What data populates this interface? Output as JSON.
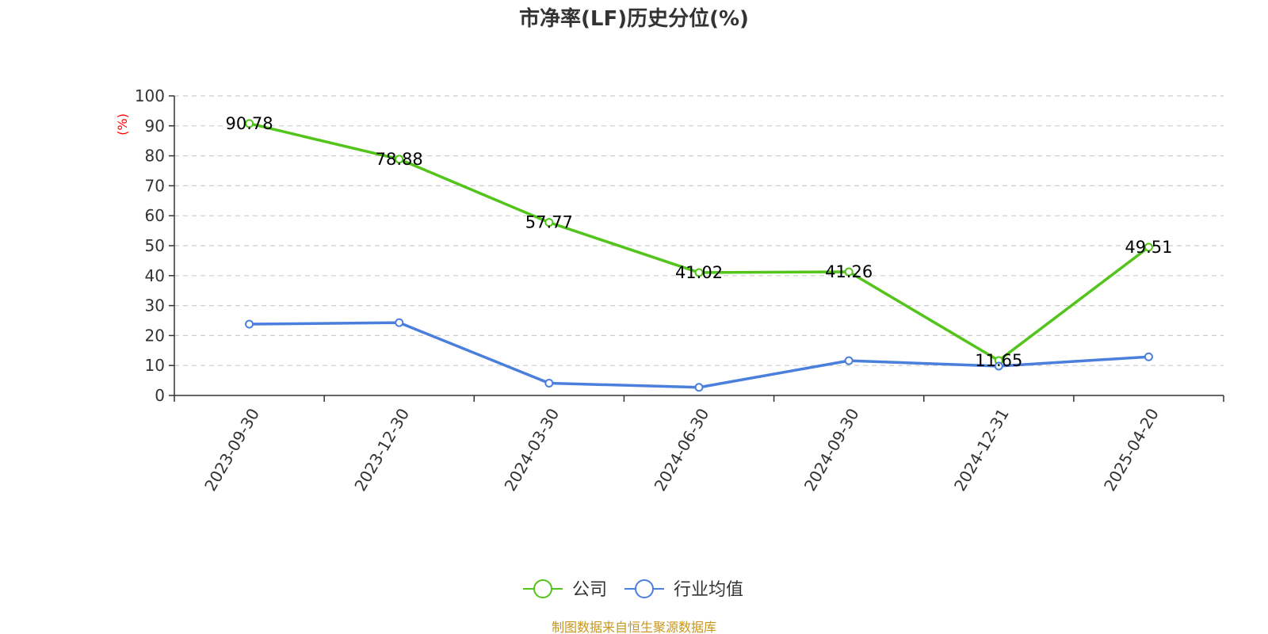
{
  "chart_data": {
    "type": "line",
    "title": "市净率(LF)历史分位(%)",
    "unit_label": "(%)",
    "categories": [
      "2023-09-30",
      "2023-12-30",
      "2024-03-30",
      "2024-06-30",
      "2024-09-30",
      "2024-12-31",
      "2025-04-20"
    ],
    "ylim": [
      0,
      100
    ],
    "yticks": [
      0,
      10,
      20,
      30,
      40,
      50,
      60,
      70,
      80,
      90,
      100
    ],
    "grid": true,
    "legend_position": "bottom-center",
    "series": [
      {
        "name": "公司",
        "color": "#52c41a",
        "values": [
          90.78,
          78.88,
          57.77,
          41.02,
          41.26,
          11.65,
          49.51
        ],
        "show_labels": true
      },
      {
        "name": "行业均值",
        "color": "#4a7fdc",
        "values": [
          23.8,
          24.3,
          4.1,
          2.7,
          11.6,
          9.8,
          12.9
        ],
        "show_labels": false
      }
    ],
    "source": "制图数据来自恒生聚源数据库"
  }
}
